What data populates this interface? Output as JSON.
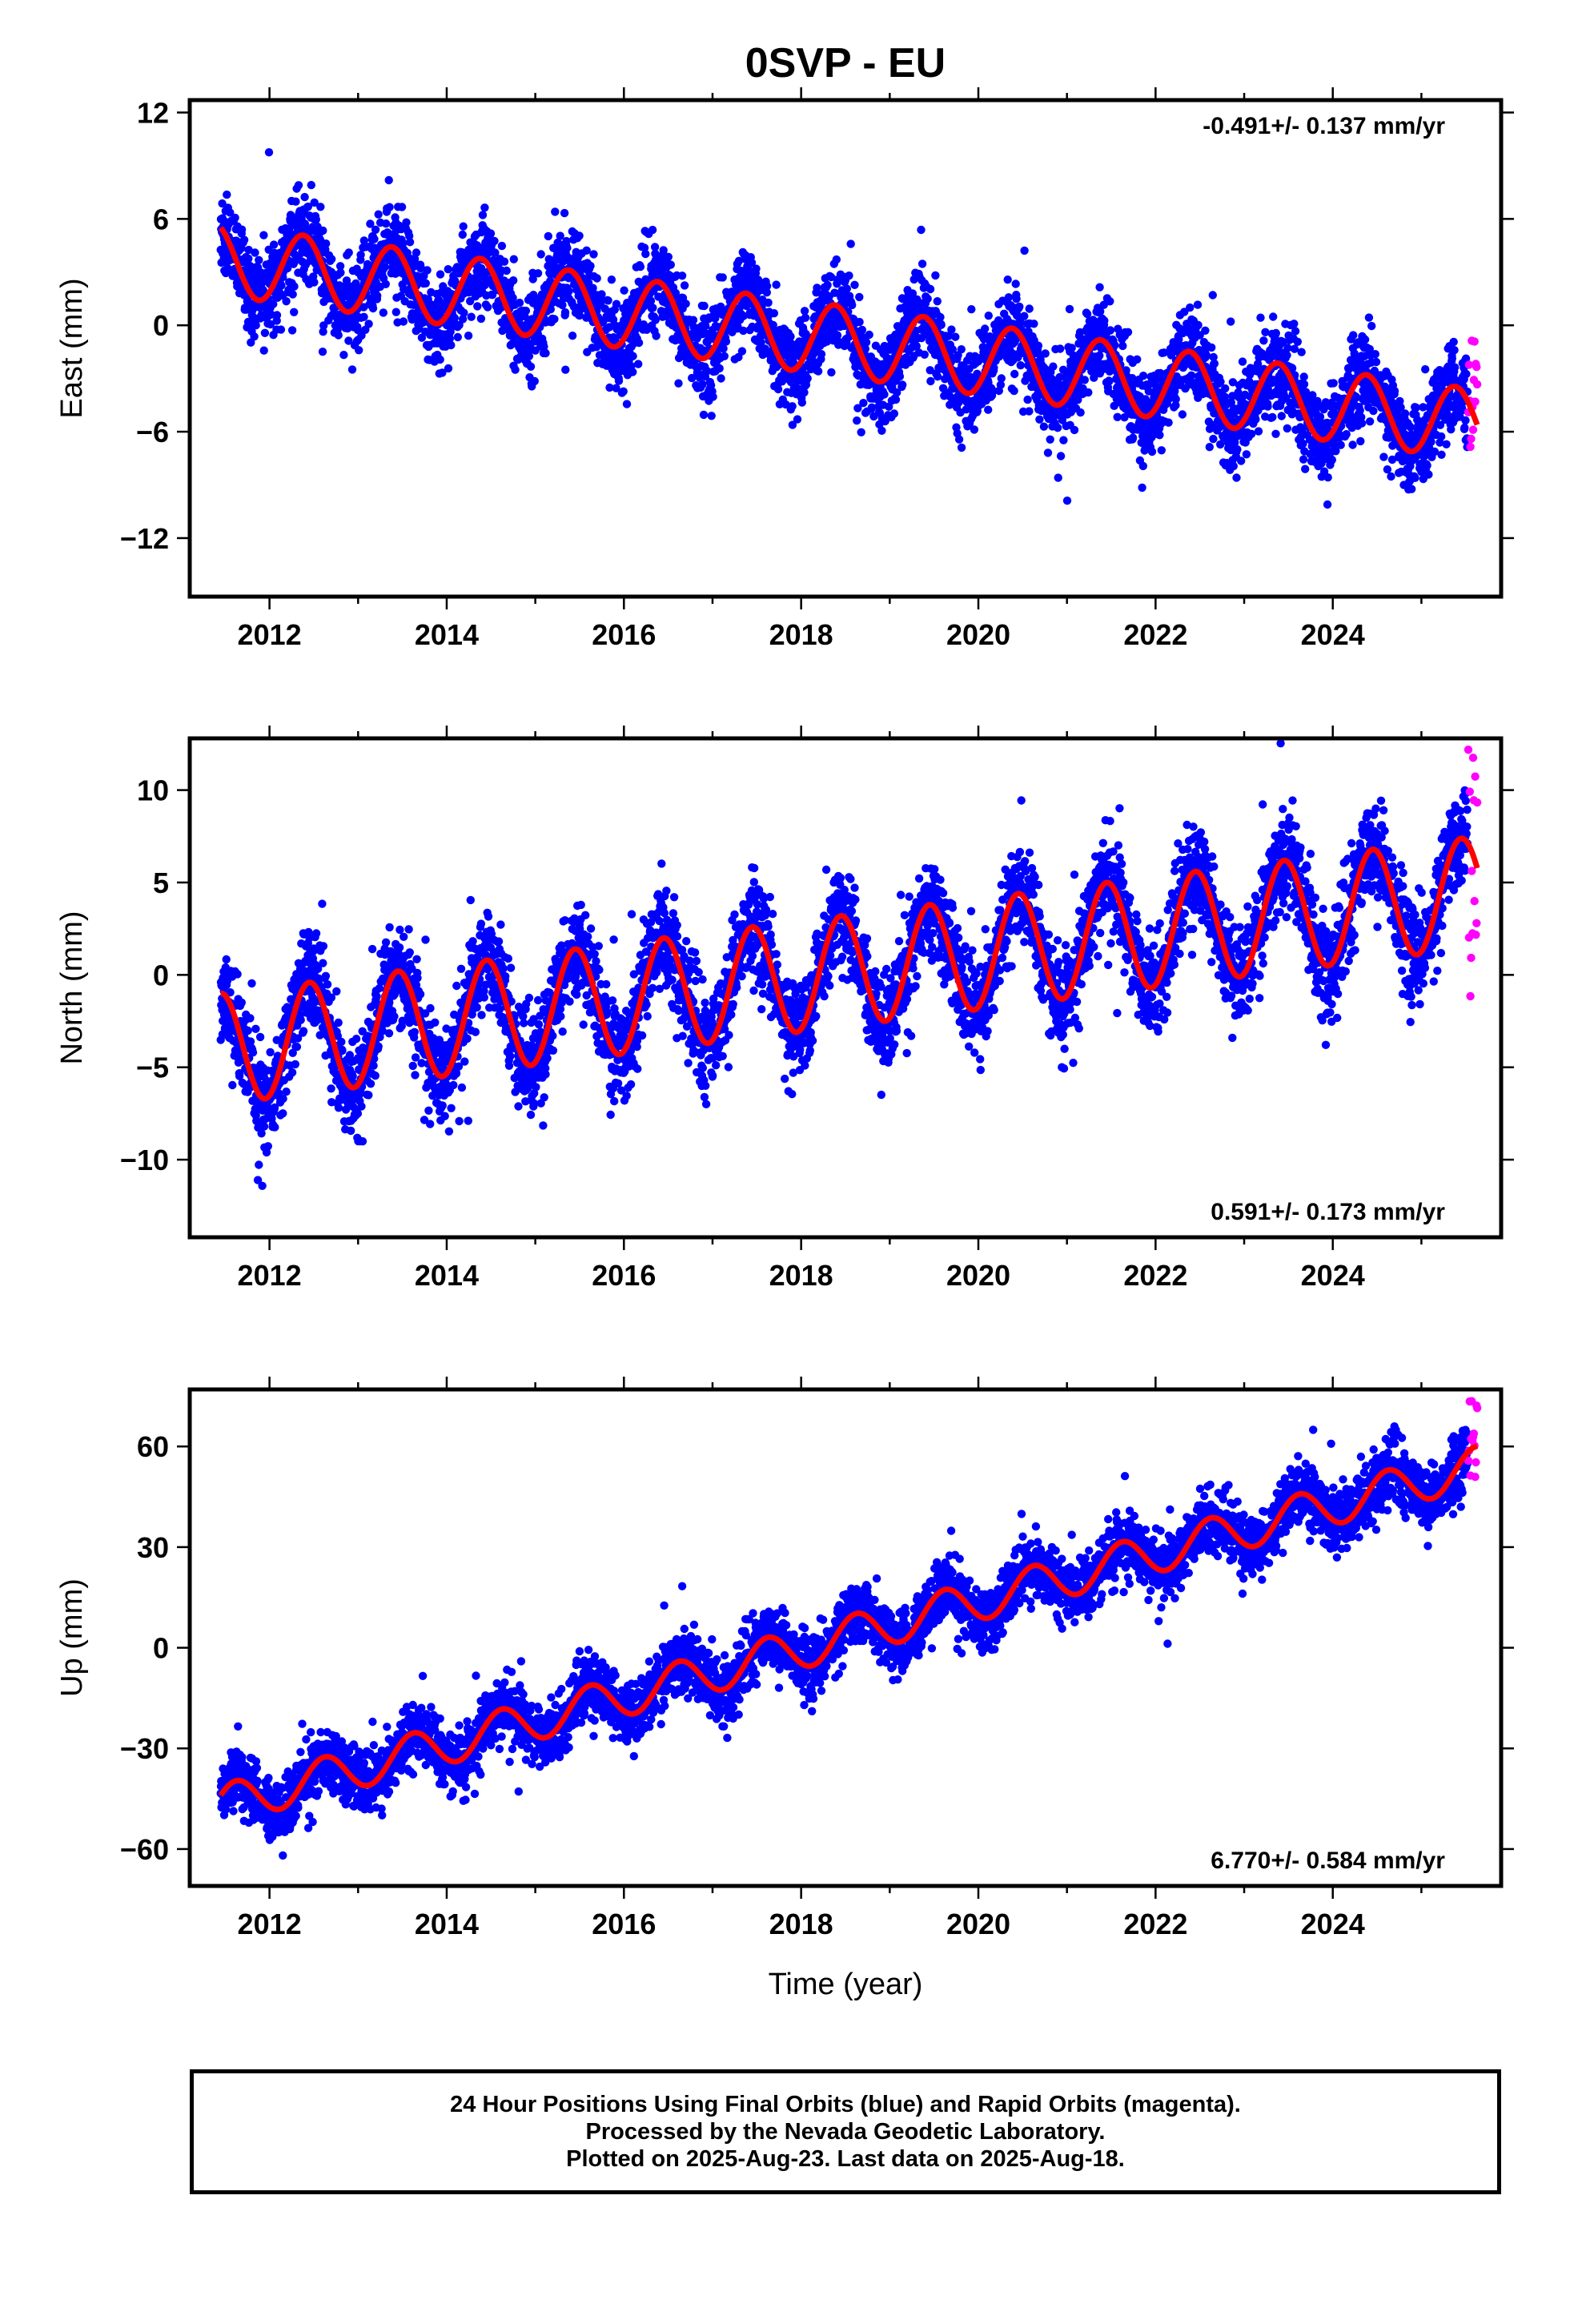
{
  "chart_title": "0SVP - EU",
  "chart_data": [
    {
      "type": "scatter",
      "ylabel": "East (mm)",
      "xlabel": "",
      "xlim": [
        2011.1,
        2025.9
      ],
      "ylim": [
        -15.3,
        12.7
      ],
      "xticks": [
        2012,
        2014,
        2016,
        2018,
        2020,
        2022,
        2024
      ],
      "yticks": [
        12,
        6,
        0,
        -6,
        -12
      ],
      "ytick_labels": [
        "12",
        "6",
        "0",
        "−6",
        "−12"
      ],
      "rate_label": "-0.491+/- 0.137 mm/yr",
      "rate_position": "top-right",
      "series": [
        {
          "name": "Final Orbits",
          "color": "#0000ff",
          "x_range": [
            2011.45,
            2025.52
          ],
          "trend": -0.491,
          "y_at_start": 3.6,
          "annual_amplitude": 2.0,
          "annual_peak_phase": 0.38,
          "noise": 1.2
        },
        {
          "name": "Rapid Orbits",
          "color": "#ff00ff",
          "x_range": [
            2025.53,
            2025.63
          ],
          "y_range": [
            -7.7,
            -0.4
          ]
        },
        {
          "name": "Model",
          "color": "#ff0000",
          "x_range": [
            2011.45,
            2025.63
          ],
          "start_value": 5.5,
          "end_value": -3.8
        }
      ]
    },
    {
      "type": "scatter",
      "ylabel": "North (mm)",
      "xlabel": "",
      "xlim": [
        2011.1,
        2025.9
      ],
      "ylim": [
        -14.2,
        12.8
      ],
      "xticks": [
        2012,
        2014,
        2016,
        2018,
        2020,
        2022,
        2024
      ],
      "yticks": [
        10,
        5,
        0,
        -5,
        -10
      ],
      "ytick_labels": [
        "10",
        "5",
        "0",
        "−5",
        "−10"
      ],
      "rate_label": "0.591+/- 0.173 mm/yr",
      "rate_position": "bottom-right",
      "series": [
        {
          "name": "Final Orbits",
          "color": "#0000ff",
          "x_range": [
            2011.45,
            2025.52
          ],
          "trend": 0.591,
          "y_at_start": -3.2,
          "annual_amplitude": 3.0,
          "annual_peak_phase": 0.45,
          "noise": 1.3
        },
        {
          "name": "Rapid Orbits",
          "color": "#ff00ff",
          "x_range": [
            2025.53,
            2025.63
          ],
          "y_range": [
            -2.0,
            12.2
          ]
        },
        {
          "name": "Model",
          "color": "#ff0000",
          "x_range": [
            2011.45,
            2025.63
          ],
          "start_value": -1.0,
          "end_value": 7.5
        }
      ]
    },
    {
      "type": "scatter",
      "ylabel": "Up (mm)",
      "xlabel": "Time (year)",
      "xlim": [
        2011.1,
        2025.9
      ],
      "ylim": [
        -71,
        77
      ],
      "xticks": [
        2012,
        2014,
        2016,
        2018,
        2020,
        2022,
        2024
      ],
      "yticks": [
        60,
        30,
        0,
        -30,
        -60
      ],
      "ytick_labels": [
        "60",
        "30",
        "0",
        "−30",
        "−60"
      ],
      "rate_label": "6.770+/- 0.584 mm/yr",
      "rate_position": "bottom-right",
      "series": [
        {
          "name": "Final Orbits",
          "color": "#0000ff",
          "x_range": [
            2011.45,
            2025.52
          ],
          "trend": 6.77,
          "y_at_start": -43,
          "annual_amplitude": 6.0,
          "annual_peak_phase": 0.62,
          "noise": 4.5
        },
        {
          "name": "Rapid Orbits",
          "color": "#ff00ff",
          "x_range": [
            2025.53,
            2025.63
          ],
          "y_range": [
            46,
            74
          ]
        },
        {
          "name": "Model",
          "color": "#ff0000",
          "x_range": [
            2011.45,
            2025.63
          ],
          "start_value": -44,
          "end_value": 57
        }
      ]
    }
  ],
  "footer": {
    "line1": "24 Hour Positions Using Final Orbits (blue) and Rapid Orbits (magenta).",
    "line2": "Processed by the Nevada Geodetic Laboratory.",
    "line3": "Plotted on 2025-Aug-23. Last data on 2025-Aug-18."
  }
}
